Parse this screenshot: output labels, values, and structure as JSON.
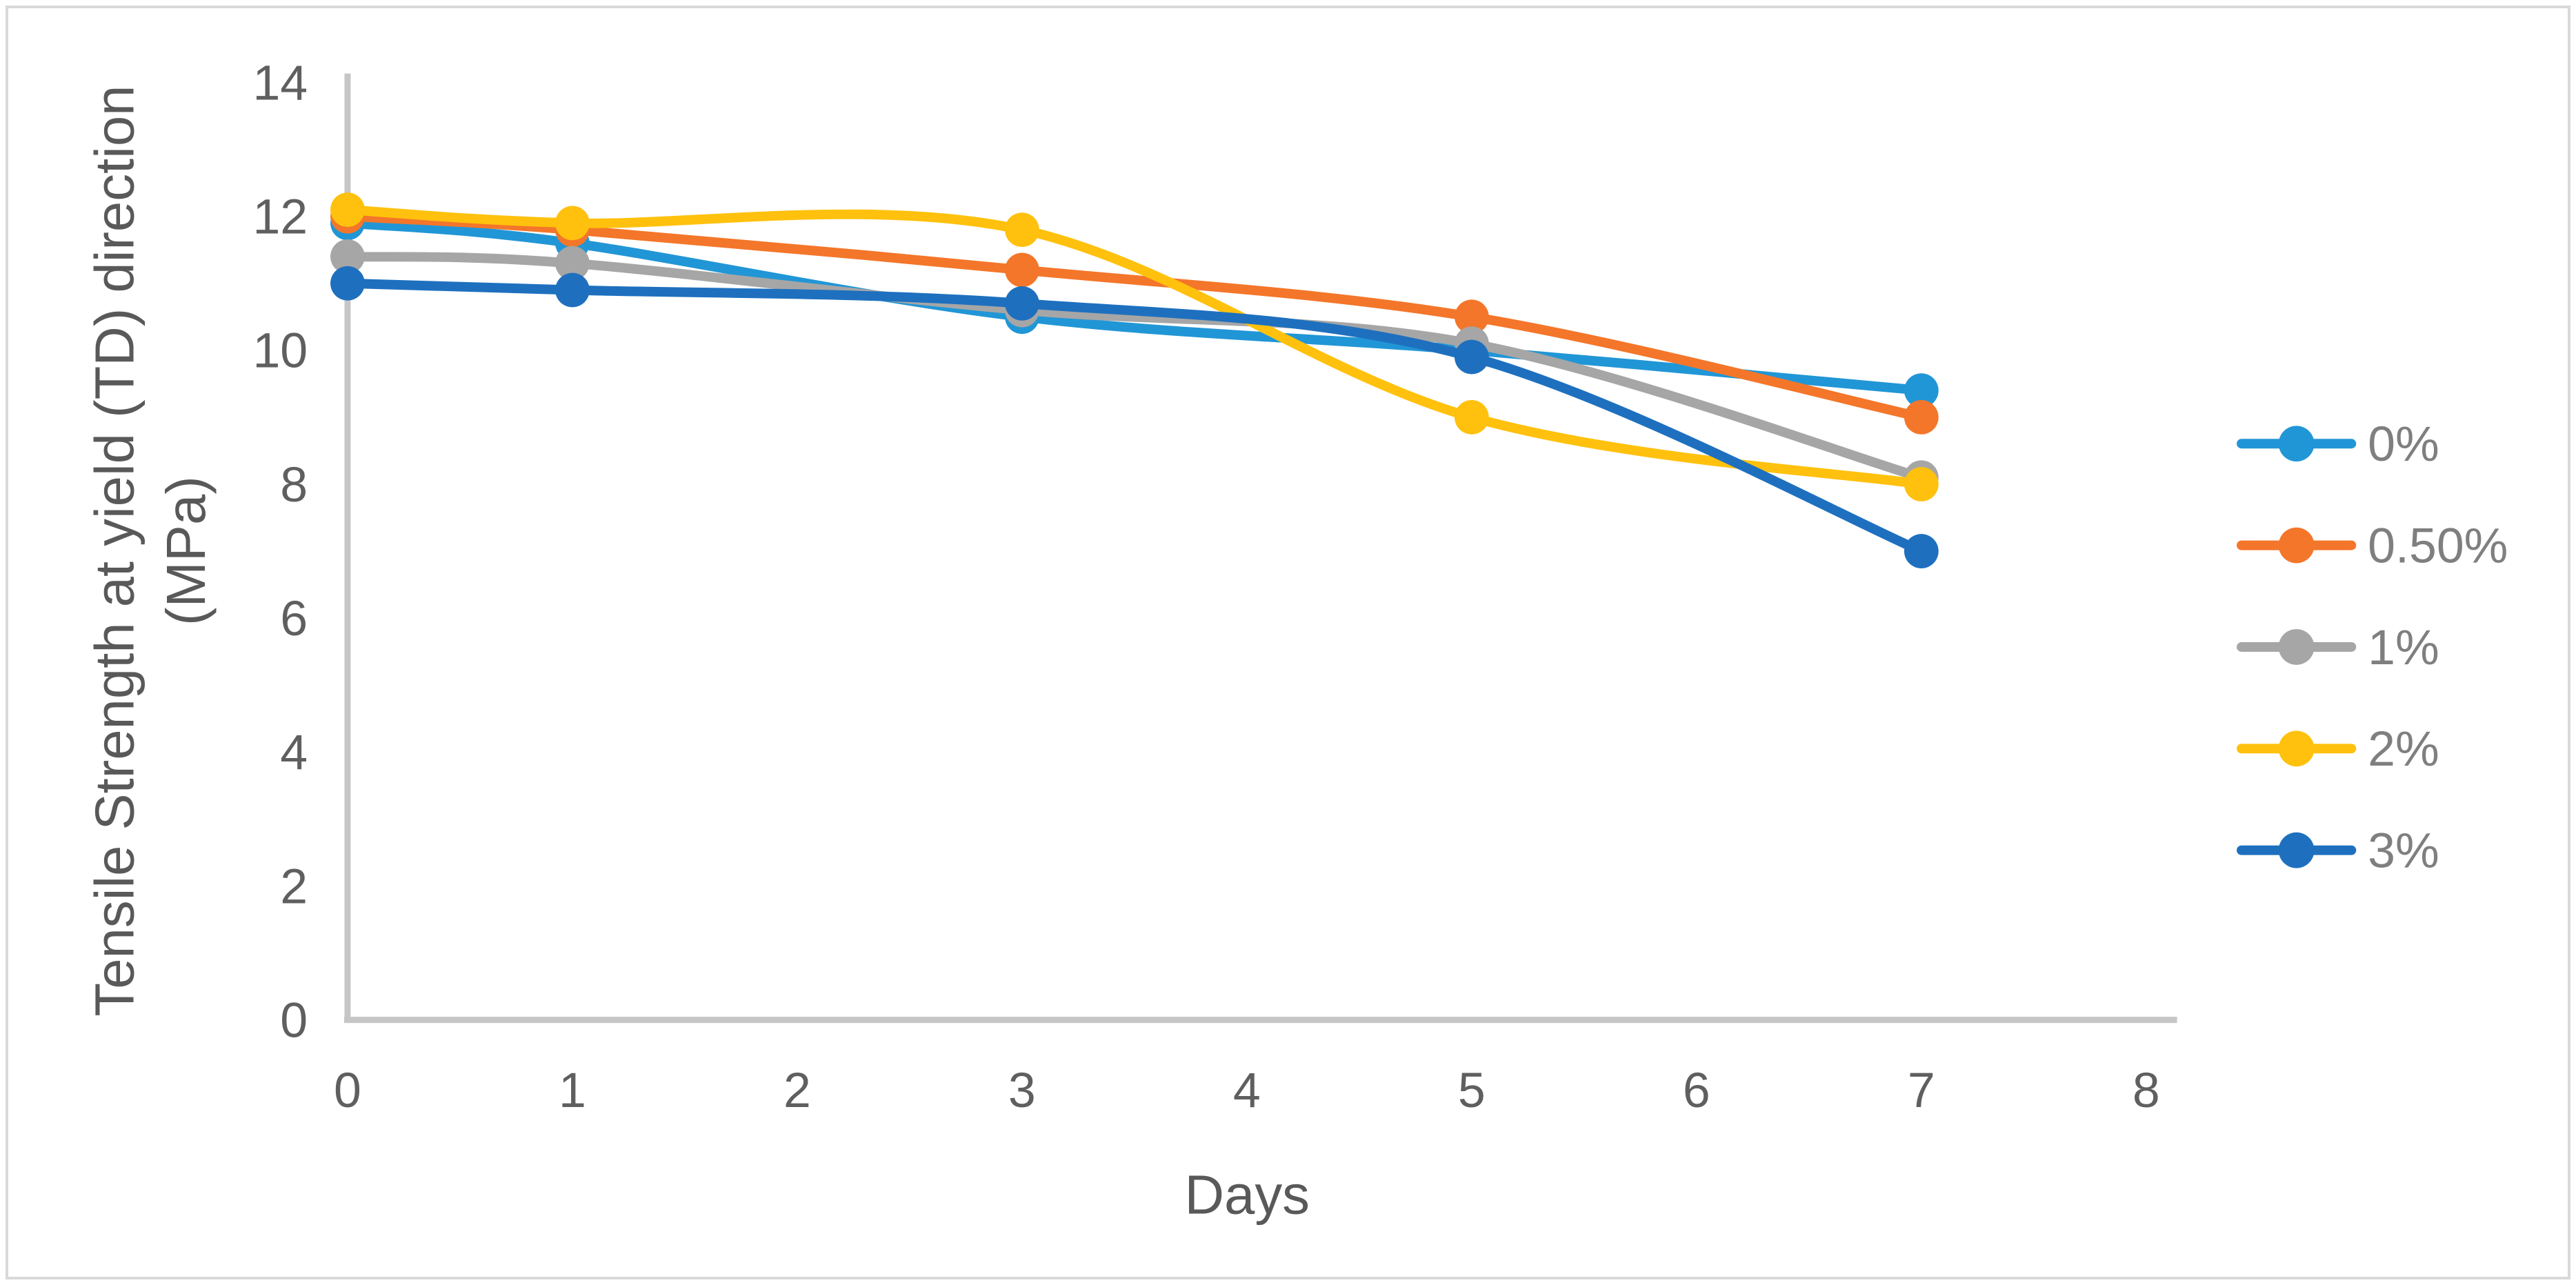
{
  "chart_data": {
    "type": "line",
    "title": "",
    "xlabel": "Days",
    "ylabel_line1": "Tensile Strength at yield (TD) direction",
    "ylabel_line2": "(MPa)",
    "x": [
      0,
      1,
      3,
      5,
      7
    ],
    "x_ticks": [
      0,
      1,
      2,
      3,
      4,
      5,
      6,
      7,
      8
    ],
    "y_ticks": [
      0,
      2,
      4,
      6,
      8,
      10,
      12,
      14
    ],
    "xlim": [
      0,
      8
    ],
    "ylim": [
      0,
      14
    ],
    "grid": false,
    "smoothed_lines": true,
    "legend_position": "right",
    "series": [
      {
        "name": "0%",
        "color": "#2196D6",
        "values": [
          11.9,
          11.6,
          10.5,
          10.0,
          9.4
        ]
      },
      {
        "name": "0.50%",
        "color": "#F4762A",
        "values": [
          12.0,
          11.8,
          11.2,
          10.5,
          9.0
        ]
      },
      {
        "name": "1%",
        "color": "#A6A6A6",
        "values": [
          11.4,
          11.3,
          10.6,
          10.1,
          8.1
        ]
      },
      {
        "name": "2%",
        "color": "#FFC10D",
        "values": [
          12.1,
          11.9,
          11.8,
          9.0,
          8.0
        ]
      },
      {
        "name": "3%",
        "color": "#1E70BF",
        "values": [
          11.0,
          10.9,
          10.7,
          9.9,
          7.0
        ]
      }
    ],
    "colors": {
      "axis_line": "#C6C6C6",
      "tick_label": "#5F5F5F",
      "axis_title": "#595959",
      "legend_text": "#7F7F7F",
      "frame_border": "#D9D9D9"
    }
  }
}
